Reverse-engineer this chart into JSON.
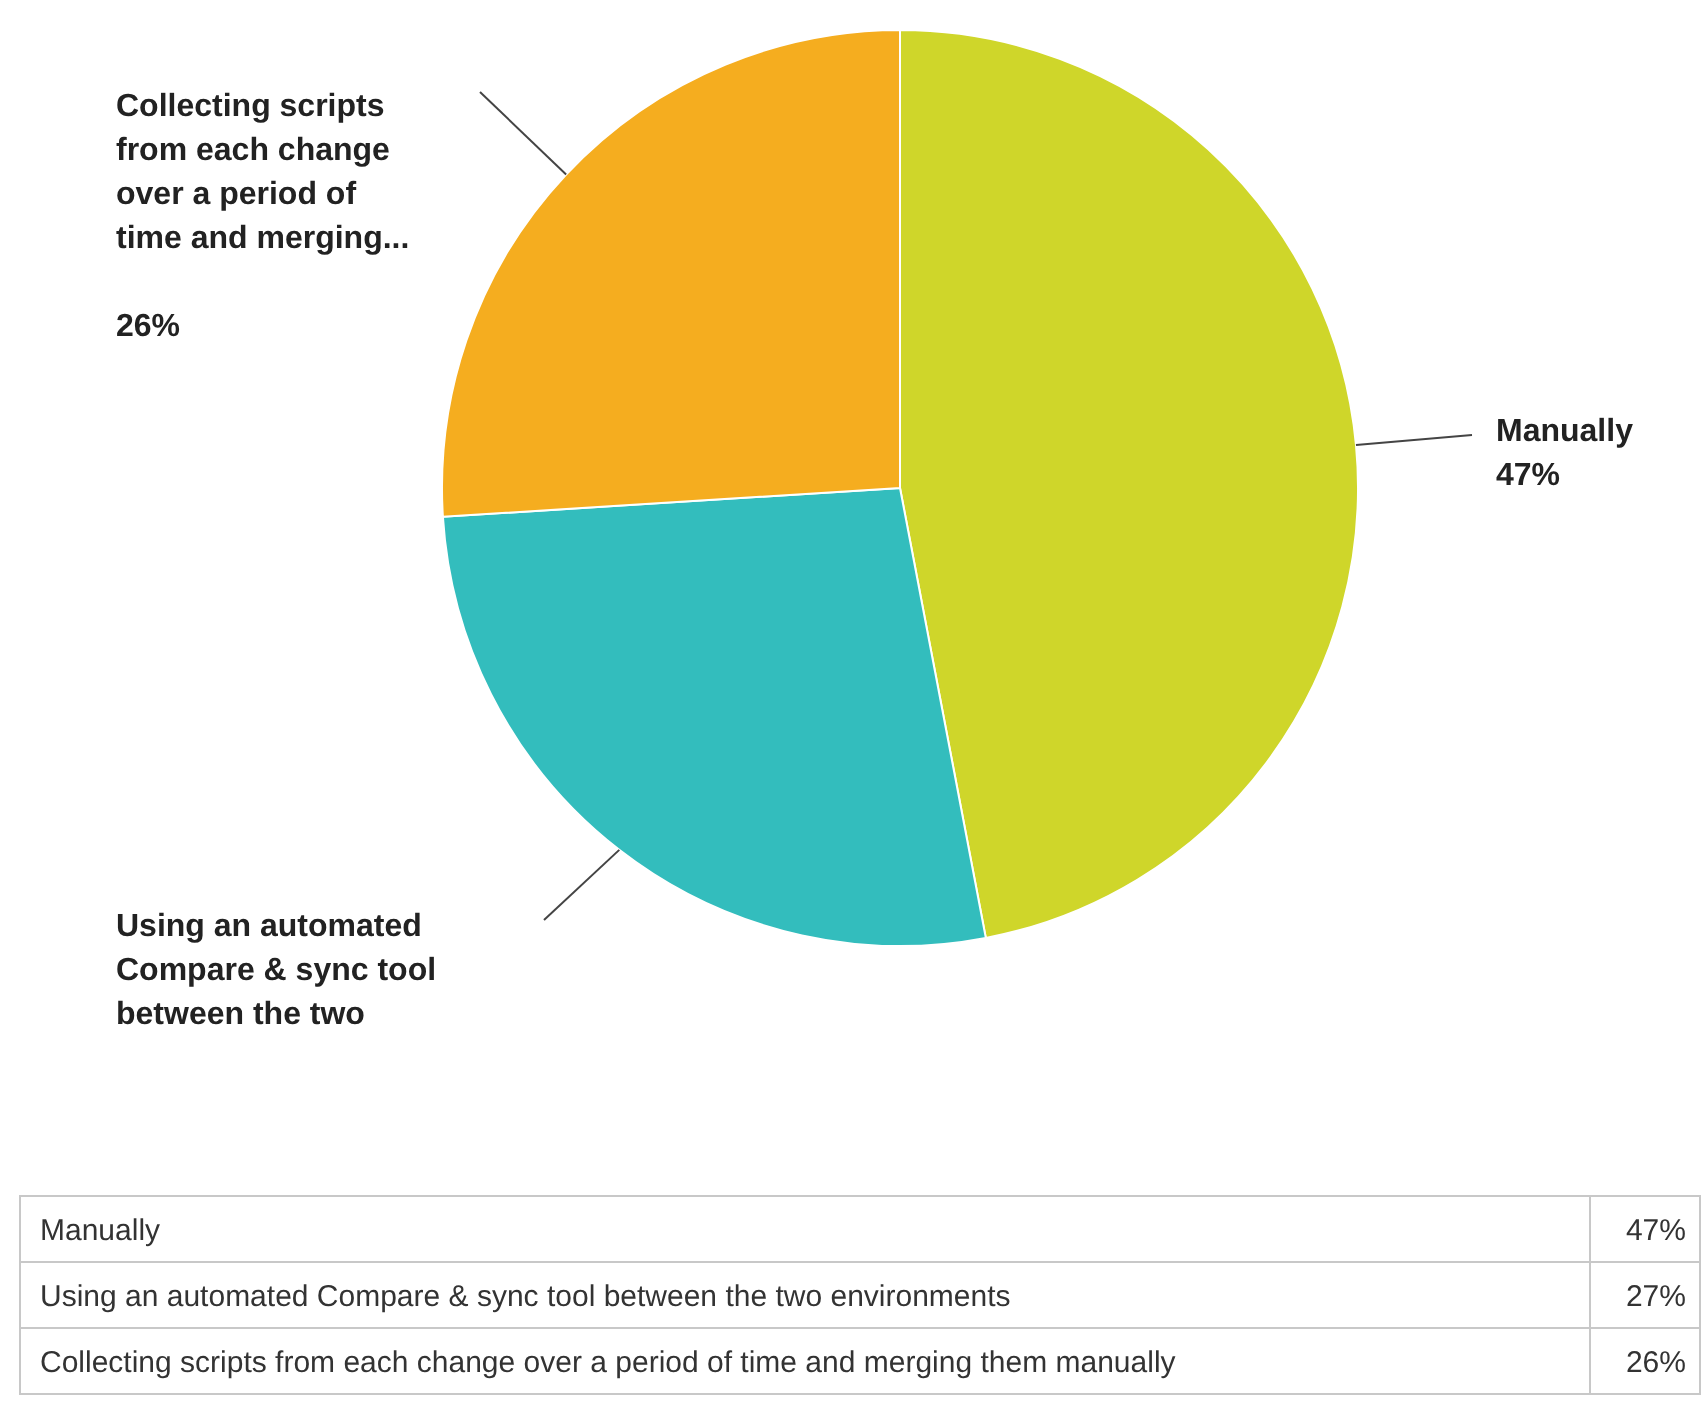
{
  "chart_data": [
    {
      "type": "pie",
      "categories": [
        "Manually",
        "Using an automated Compare & sync tool between the two",
        "Collecting scripts from each change over a period of time and merging..."
      ],
      "values": [
        47,
        27,
        26
      ],
      "colors": [
        "#cfd62a",
        "#33bdbd",
        "#f5ad1f"
      ],
      "value_labels": [
        "47%",
        null,
        "26%"
      ]
    },
    {
      "type": "other",
      "annotations": [
        "Manually",
        "47%",
        "Using an automated Compare & sync tool between the two environments",
        "27%",
        "Collecting scripts from each change over a period of time and merging them manually",
        "26%"
      ]
    }
  ]
}
